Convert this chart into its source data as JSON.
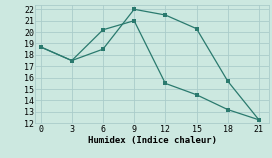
{
  "line1_x": [
    0,
    3,
    6,
    9,
    12,
    15,
    18,
    21
  ],
  "line1_y": [
    18.7,
    17.5,
    18.5,
    22.0,
    21.5,
    20.3,
    15.7,
    12.3
  ],
  "line2_x": [
    0,
    3,
    6,
    9,
    12,
    15,
    18,
    21
  ],
  "line2_y": [
    18.7,
    17.5,
    20.2,
    21.0,
    15.5,
    14.5,
    13.2,
    12.3
  ],
  "xlabel": "Humidex (Indice chaleur)",
  "xlim": [
    -0.5,
    22
  ],
  "ylim": [
    12,
    22.4
  ],
  "yticks": [
    12,
    13,
    14,
    15,
    16,
    17,
    18,
    19,
    20,
    21,
    22
  ],
  "xticks": [
    0,
    3,
    6,
    9,
    12,
    15,
    18,
    21
  ],
  "line_color": "#2a7a6e",
  "bg_color": "#cce8e0",
  "grid_color": "#aaccca"
}
